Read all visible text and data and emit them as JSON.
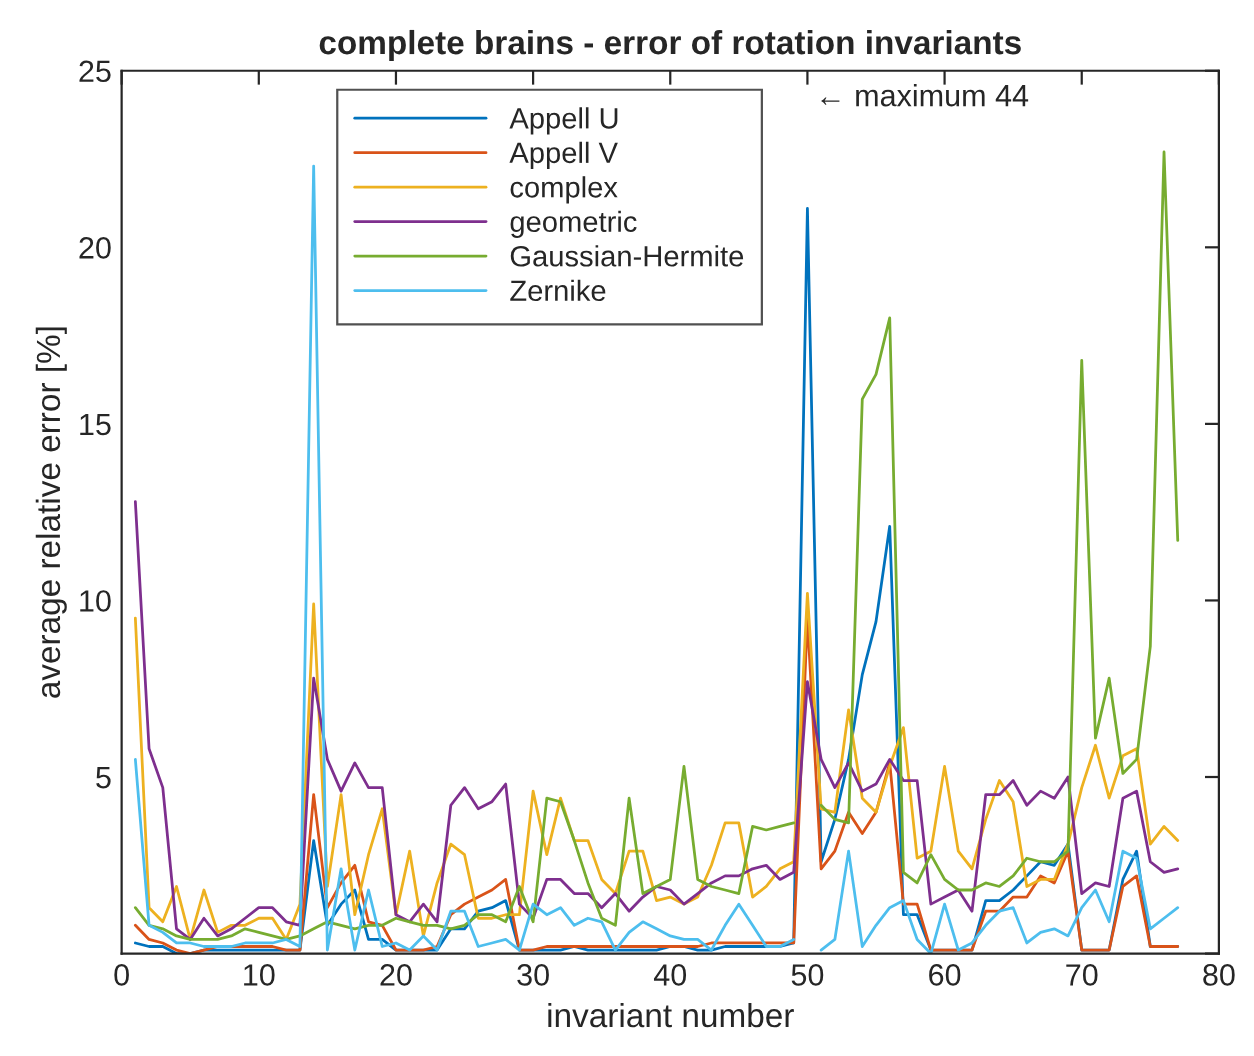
{
  "chart_data": {
    "type": "line",
    "title": "complete brains - error of rotation invariants",
    "xlabel": "invariant number",
    "ylabel": "average relative error [%]",
    "x": [
      1,
      2,
      3,
      4,
      5,
      6,
      7,
      8,
      9,
      10,
      11,
      12,
      13,
      14,
      15,
      16,
      17,
      18,
      19,
      20,
      21,
      22,
      23,
      24,
      25,
      26,
      27,
      28,
      29,
      30,
      31,
      32,
      33,
      34,
      35,
      36,
      37,
      38,
      39,
      40,
      41,
      42,
      43,
      44,
      45,
      46,
      47,
      48,
      49,
      50,
      51,
      52,
      53,
      54,
      55,
      56,
      57,
      58,
      59,
      60,
      61,
      62,
      63,
      64,
      65,
      66,
      67,
      68,
      69,
      70,
      71,
      72,
      73,
      74,
      75,
      76,
      77
    ],
    "xlim": [
      0,
      80
    ],
    "xticks": [
      0,
      10,
      20,
      30,
      40,
      50,
      60,
      70,
      80
    ],
    "ylim": [
      0,
      25
    ],
    "yticks": [
      {
        "value": 0,
        "label": null
      },
      5,
      10,
      15,
      20,
      25
    ],
    "grid": false,
    "legend": "top",
    "marker": "none",
    "line_style": "solid",
    "annotations": [
      "← maximum 44"
    ],
    "series": [
      {
        "name": "Appell U",
        "color": "#0072bd",
        "values": [
          0.3,
          0.2,
          0.2,
          0,
          0,
          0.1,
          0.1,
          0.1,
          0.1,
          0.1,
          0.1,
          0.1,
          0.1,
          3.2,
          0.8,
          1.4,
          1.8,
          0.4,
          0.4,
          0.1,
          0.1,
          0.1,
          0.1,
          0.7,
          0.7,
          1.2,
          1.3,
          1.5,
          0.1,
          0.1,
          0.1,
          0.1,
          0.2,
          0.1,
          0.1,
          0.1,
          0.1,
          0.1,
          0.1,
          0.2,
          0.2,
          0.1,
          0.1,
          0.2,
          0.2,
          0.2,
          0.2,
          0.2,
          0.3,
          21.1,
          2.6,
          3.8,
          5.5,
          7.9,
          9.4,
          12.1,
          1.1,
          1.1,
          0.1,
          0.1,
          0.1,
          0.1,
          1.5,
          1.5,
          1.8,
          2.2,
          2.6,
          2.5,
          3.1,
          0.1,
          0.1,
          0.1,
          2.1,
          2.9,
          0.2,
          0.2,
          0.2
        ]
      },
      {
        "name": "Appell V",
        "color": "#d95319",
        "values": [
          0.8,
          0.4,
          0.3,
          0.1,
          0,
          0.1,
          0.2,
          0.2,
          0.2,
          0.2,
          0.2,
          0.1,
          0.1,
          4.5,
          1.3,
          2.0,
          2.5,
          0.9,
          0.8,
          0.1,
          0.1,
          0.1,
          0.2,
          1.1,
          1.4,
          1.6,
          1.8,
          2.1,
          0.1,
          0.1,
          0.2,
          0.2,
          0.2,
          0.2,
          0.2,
          0.2,
          0.2,
          0.2,
          0.2,
          0.2,
          0.2,
          0.2,
          0.3,
          0.3,
          0.3,
          0.3,
          0.3,
          0.3,
          0.3,
          9.5,
          2.4,
          2.9,
          4.0,
          3.4,
          4.0,
          5.4,
          1.4,
          1.4,
          0.1,
          0.1,
          0.1,
          0.1,
          1.2,
          1.2,
          1.6,
          1.6,
          2.2,
          2.0,
          2.9,
          0.1,
          0.1,
          0.1,
          1.9,
          2.2,
          0.2,
          0.2,
          0.2
        ]
      },
      {
        "name": "complex",
        "color": "#edb120",
        "values": [
          9.5,
          1.3,
          0.9,
          1.9,
          0.4,
          1.8,
          0.6,
          0.8,
          0.8,
          1.0,
          1.0,
          0.4,
          1.4,
          9.9,
          1.9,
          4.5,
          1.1,
          2.8,
          4.1,
          1.1,
          2.9,
          0.5,
          2.0,
          3.1,
          2.8,
          1.0,
          1.0,
          1.1,
          1.1,
          4.6,
          2.8,
          4.4,
          3.2,
          3.2,
          2.1,
          1.7,
          2.9,
          2.9,
          1.5,
          1.6,
          1.4,
          1.6,
          2.5,
          3.7,
          3.7,
          1.6,
          1.9,
          2.4,
          2.6,
          10.2,
          4.1,
          4.0,
          6.9,
          4.4,
          4.0,
          5.3,
          6.4,
          2.7,
          2.9,
          5.3,
          2.9,
          2.4,
          3.8,
          4.9,
          4.3,
          1.9,
          2.1,
          2.1,
          3.1,
          4.7,
          5.9,
          4.4,
          5.6,
          5.8,
          3.1,
          3.6,
          3.2
        ]
      },
      {
        "name": "geometric",
        "color": "#7e2f8e",
        "values": [
          12.8,
          5.8,
          4.7,
          0.7,
          0.4,
          1.0,
          0.5,
          0.7,
          1.0,
          1.3,
          1.3,
          0.9,
          0.8,
          7.8,
          5.5,
          4.6,
          5.4,
          4.7,
          4.7,
          1.1,
          0.9,
          1.4,
          0.9,
          4.2,
          4.7,
          4.1,
          4.3,
          4.8,
          1.4,
          1.0,
          2.1,
          2.1,
          1.7,
          1.7,
          1.3,
          1.7,
          1.2,
          1.6,
          1.9,
          1.8,
          1.4,
          1.7,
          2.0,
          2.2,
          2.2,
          2.4,
          2.5,
          2.1,
          2.3,
          7.7,
          5.5,
          4.7,
          5.4,
          4.6,
          4.8,
          5.5,
          4.9,
          4.9,
          1.4,
          1.6,
          1.8,
          1.2,
          4.5,
          4.5,
          4.9,
          4.2,
          4.6,
          4.4,
          5.0,
          1.7,
          2.0,
          1.9,
          4.4,
          4.6,
          2.6,
          2.3,
          2.4
        ]
      },
      {
        "name": "Gaussian-Hermite",
        "color": "#77ac30",
        "values": [
          1.3,
          0.8,
          0.7,
          0.5,
          0.4,
          0.4,
          0.4,
          0.5,
          0.7,
          0.6,
          0.5,
          0.4,
          0.5,
          0.7,
          0.9,
          0.8,
          0.7,
          0.8,
          0.8,
          1.0,
          0.9,
          0.8,
          0.8,
          0.7,
          0.8,
          1.1,
          1.1,
          0.9,
          1.9,
          0.9,
          4.4,
          4.3,
          3.2,
          2.0,
          1.0,
          0.8,
          4.4,
          1.7,
          1.9,
          2.1,
          5.3,
          2.1,
          1.9,
          1.8,
          1.7,
          3.6,
          3.5,
          3.6,
          3.7,
          null,
          4.2,
          3.8,
          3.7,
          15.7,
          16.4,
          18.0,
          2.3,
          2.0,
          2.8,
          2.1,
          1.8,
          1.8,
          2.0,
          1.9,
          2.2,
          2.7,
          2.6,
          2.6,
          2.9,
          16.8,
          6.1,
          7.8,
          5.1,
          5.5,
          8.7,
          22.7,
          11.7
        ]
      },
      {
        "name": "Zernike",
        "color": "#4dbeee",
        "values": [
          5.5,
          0.8,
          0.6,
          0.3,
          0.3,
          0.2,
          0.2,
          0.2,
          0.3,
          0.3,
          0.3,
          0.4,
          0.2,
          22.3,
          0.1,
          2.4,
          0.1,
          1.8,
          0.2,
          0.3,
          0.1,
          0.5,
          0.1,
          1.2,
          1.2,
          0.2,
          0.3,
          0.4,
          0.1,
          1.4,
          1.1,
          1.3,
          0.8,
          1.0,
          0.9,
          0.1,
          0.6,
          0.9,
          0.7,
          0.5,
          0.4,
          0.4,
          0.1,
          0.8,
          1.4,
          0.8,
          0.2,
          0.2,
          0.4,
          null,
          0.1,
          0.4,
          2.9,
          0.2,
          0.8,
          1.3,
          1.5,
          0.4,
          0.0,
          1.4,
          0.1,
          0.3,
          0.8,
          1.2,
          1.3,
          0.3,
          0.6,
          0.7,
          0.5,
          1.3,
          1.8,
          0.9,
          2.9,
          2.7,
          0.7,
          1.0,
          1.3
        ]
      }
    ]
  }
}
